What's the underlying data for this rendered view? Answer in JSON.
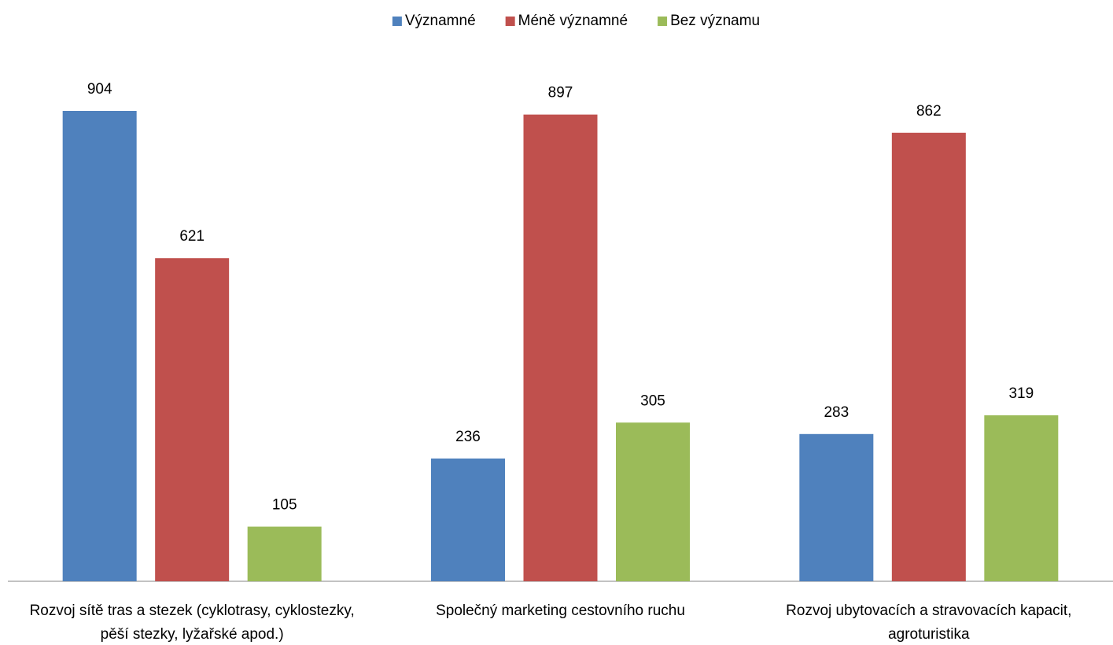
{
  "chart_data": {
    "type": "bar",
    "categories": [
      "Rozvoj sítě tras a stezek (cyklotrasy, cyklostezky, pěší stezky, lyžařské apod.)",
      "Společný marketing cestovního ruchu",
      "Rozvoj ubytovacích a stravovacích kapacit, agroturistika"
    ],
    "series": [
      {
        "name": "Významné",
        "color": "#4f81bd",
        "values": [
          904,
          236,
          283
        ]
      },
      {
        "name": "Méně významné",
        "color": "#c0504d",
        "values": [
          621,
          897,
          862
        ]
      },
      {
        "name": "Bez významu",
        "color": "#9bbb59",
        "values": [
          105,
          305,
          319
        ]
      }
    ],
    "legend": "top"
  }
}
